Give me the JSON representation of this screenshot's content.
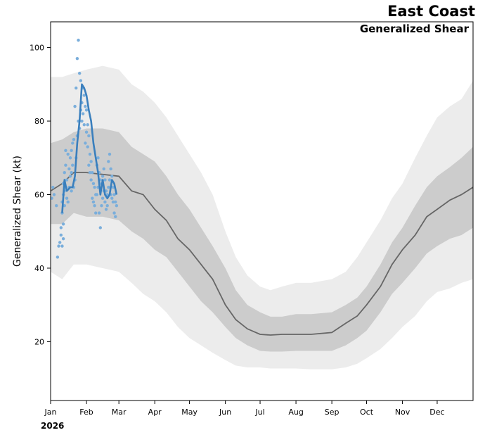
{
  "chart_data": {
    "type": "line",
    "title": "East Coast",
    "subtitle": "Generalized Shear",
    "xlabel": "",
    "ylabel": "Generalized Shear (kt)",
    "year_label": "2026",
    "x_tick_labels": [
      "Jan",
      "Feb",
      "Mar",
      "Apr",
      "May",
      "Jun",
      "Jul",
      "Aug",
      "Sep",
      "Oct",
      "Nov",
      "Dec"
    ],
    "x_tick_days": [
      0,
      31,
      59,
      90,
      120,
      151,
      181,
      212,
      243,
      273,
      304,
      334
    ],
    "xlim": [
      0,
      365
    ],
    "ylim": [
      4,
      107
    ],
    "y_ticks": [
      20,
      40,
      60,
      80,
      100
    ],
    "grid": false,
    "colors": {
      "outer_band": "#ececec",
      "inner_band": "#cccccc",
      "climatology_mean": "#666666",
      "forecast_line": "#3a7fbd",
      "ensemble_points": "#7aaedb"
    },
    "series": [
      {
        "name": "Climatology mean",
        "x": [
          0,
          10,
          20,
          31,
          45,
          59,
          70,
          80,
          90,
          100,
          110,
          120,
          130,
          140,
          151,
          160,
          170,
          181,
          190,
          200,
          212,
          225,
          243,
          255,
          265,
          273,
          285,
          295,
          304,
          315,
          325,
          334,
          345,
          355,
          365
        ],
        "values": [
          61,
          63,
          66,
          66,
          65.5,
          65,
          61,
          60,
          56,
          53,
          48,
          45,
          41,
          37,
          30,
          26,
          23.5,
          22,
          21.8,
          22,
          22,
          22,
          22.5,
          25,
          27,
          30,
          35,
          41,
          45,
          49,
          54,
          56,
          58.5,
          60,
          62
        ]
      },
      {
        "name": "Inner band (upper)",
        "x": [
          0,
          10,
          20,
          31,
          45,
          59,
          70,
          80,
          90,
          100,
          110,
          120,
          130,
          140,
          151,
          160,
          170,
          181,
          190,
          200,
          212,
          225,
          243,
          255,
          265,
          273,
          285,
          295,
          304,
          315,
          325,
          334,
          345,
          355,
          365
        ],
        "values": [
          74,
          75,
          77,
          78,
          78,
          77,
          73,
          71,
          69,
          65,
          60,
          56,
          51,
          46,
          40,
          34,
          30,
          28,
          26.8,
          26.8,
          27.5,
          27.5,
          28,
          30,
          32,
          35,
          41,
          47,
          51,
          57,
          62,
          65,
          67.5,
          70,
          73
        ]
      },
      {
        "name": "Inner band (lower)",
        "x": [
          0,
          10,
          20,
          31,
          45,
          59,
          70,
          80,
          90,
          100,
          110,
          120,
          130,
          140,
          151,
          160,
          170,
          181,
          190,
          200,
          212,
          225,
          243,
          255,
          265,
          273,
          285,
          295,
          304,
          315,
          325,
          334,
          345,
          355,
          365
        ],
        "values": [
          52,
          52,
          55,
          54,
          54,
          53,
          50,
          48,
          45,
          43,
          39,
          35,
          31,
          28,
          24,
          21,
          19,
          17.5,
          17.3,
          17.3,
          17.5,
          17.5,
          17.5,
          19,
          21,
          23,
          28,
          33,
          36,
          40,
          44,
          46,
          48,
          49,
          51
        ]
      },
      {
        "name": "Outer band (upper)",
        "x": [
          0,
          10,
          20,
          31,
          45,
          59,
          70,
          80,
          90,
          100,
          110,
          120,
          130,
          140,
          151,
          160,
          170,
          181,
          190,
          200,
          212,
          225,
          243,
          255,
          265,
          273,
          285,
          295,
          304,
          315,
          325,
          334,
          345,
          355,
          365
        ],
        "values": [
          92,
          92,
          93,
          94,
          95,
          94,
          90,
          88,
          85,
          81,
          76,
          71,
          66,
          60,
          50,
          43,
          38,
          35,
          34,
          35,
          36,
          36,
          37,
          39,
          43,
          47,
          53,
          59,
          63,
          70,
          76,
          81,
          84,
          86,
          91
        ]
      },
      {
        "name": "Outer band (lower)",
        "x": [
          0,
          10,
          20,
          31,
          45,
          59,
          70,
          80,
          90,
          100,
          110,
          120,
          130,
          140,
          151,
          160,
          170,
          181,
          190,
          200,
          212,
          225,
          243,
          255,
          265,
          273,
          285,
          295,
          304,
          315,
          325,
          334,
          345,
          355,
          365
        ],
        "values": [
          39,
          37,
          41,
          41,
          40,
          39,
          36,
          33,
          31,
          28,
          24,
          21,
          19,
          17,
          15,
          13.5,
          13,
          13,
          12.7,
          12.7,
          12.7,
          12.5,
          12.5,
          13,
          14,
          15.5,
          18,
          21,
          24,
          27,
          31,
          33.5,
          34.5,
          36,
          37
        ]
      },
      {
        "name": "Forecast",
        "x": [
          10,
          12,
          14,
          17,
          19,
          21,
          23,
          25,
          27,
          29,
          31,
          33,
          35,
          37,
          39,
          41,
          43,
          45,
          47,
          49,
          51,
          53,
          55,
          57
        ],
        "values": [
          55,
          64,
          61,
          62,
          62,
          65,
          74,
          80,
          90,
          89,
          87,
          83,
          80,
          74,
          70,
          66,
          60,
          64,
          60,
          59,
          60,
          64,
          63,
          60
        ]
      }
    ],
    "ensemble_points": {
      "x": [
        1,
        2,
        3,
        5,
        6,
        7,
        8,
        9,
        9,
        10,
        10,
        10,
        11,
        11,
        11,
        11,
        12,
        12,
        12,
        13,
        13,
        13,
        14,
        14,
        15,
        15,
        16,
        16,
        17,
        17,
        18,
        18,
        18,
        19,
        19,
        20,
        20,
        21,
        21,
        22,
        22,
        23,
        23,
        24,
        24,
        25,
        25,
        26,
        26,
        27,
        27,
        28,
        28,
        29,
        29,
        30,
        30,
        31,
        31,
        32,
        32,
        33,
        33,
        34,
        34,
        35,
        35,
        36,
        36,
        37,
        37,
        38,
        38,
        39,
        39,
        40,
        40,
        41,
        41,
        42,
        42,
        43,
        43,
        44,
        44,
        45,
        45,
        46,
        46,
        47,
        47,
        48,
        48,
        49,
        49,
        50,
        50,
        51,
        51,
        52,
        52,
        53,
        53,
        54,
        54,
        55,
        55,
        56,
        56,
        57
      ],
      "values": [
        59,
        62,
        60,
        57,
        43,
        46,
        47,
        49,
        51,
        55,
        46,
        58,
        60,
        52,
        48,
        63,
        61,
        57,
        66,
        62,
        72,
        68,
        59,
        64,
        71,
        58,
        62,
        67,
        65,
        70,
        66,
        72,
        61,
        74,
        68,
        75,
        62,
        84,
        64,
        89,
        70,
        97,
        76,
        102,
        80,
        93,
        78,
        91,
        83,
        85,
        80,
        89,
        82,
        87,
        79,
        84,
        74,
        83,
        77,
        79,
        73,
        76,
        68,
        71,
        66,
        69,
        64,
        66,
        59,
        63,
        58,
        62,
        57,
        60,
        55,
        68,
        60,
        70,
        62,
        66,
        55,
        64,
        51,
        63,
        57,
        65,
        59,
        67,
        61,
        64,
        58,
        61,
        56,
        60,
        57,
        69,
        62,
        71,
        64,
        67,
        60,
        65,
        59,
        62,
        58,
        60,
        55,
        58,
        54,
        57
      ]
    }
  }
}
